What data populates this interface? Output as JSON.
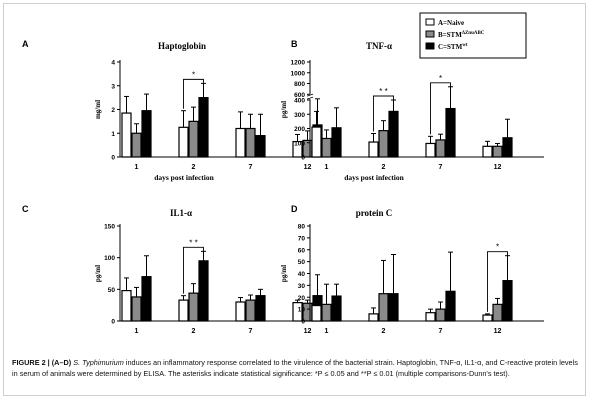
{
  "legend": {
    "items": [
      {
        "id": "A",
        "label": "A=Naive",
        "sup": "",
        "fill": "#ffffff"
      },
      {
        "id": "B",
        "label": "B=STM",
        "sup": "ΔZnuABC",
        "fill": "#8a8a8a"
      },
      {
        "id": "C",
        "label": "C=STM",
        "sup": "wt",
        "fill": "#000000"
      }
    ]
  },
  "xlabel_common": "days post infection",
  "caption": {
    "lead": "FIGURE 2 | (A–D)",
    "species": "S. Typhimurium",
    "body": " induces an inflammatory response correlated to the virulence of the bacterial strain. Haptoglobin, TNF-α, IL1-α, and C-reactive protein levels in serum of animals were determined by ELISA. The asterisks indicate statistical significance: *P ≤ 0.05 and **P ≤ 0.01 (multiple comparisons-Dunn's test)."
  },
  "chart_data": [
    {
      "type": "bar",
      "panel": "A",
      "title": "Haptoglobin",
      "ylabel": "mg/ml",
      "xlabel": "days post infection",
      "categories": [
        "1",
        "2",
        "7",
        "12"
      ],
      "ylim": [
        0,
        4
      ],
      "yticks": [
        0,
        1,
        2,
        3,
        4
      ],
      "yticklabels": [
        "0",
        "1",
        "2",
        "3",
        "4"
      ],
      "series": [
        {
          "name": "A=Naive",
          "values": [
            1.85,
            1.25,
            1.2,
            0.65
          ],
          "errors": [
            0.7,
            0.7,
            0.7,
            0.3
          ]
        },
        {
          "name": "B=STMΔZnuABC",
          "values": [
            1.0,
            1.5,
            1.2,
            0.7
          ],
          "errors": [
            0.4,
            0.6,
            0.6,
            0.4
          ]
        },
        {
          "name": "C=STMwt",
          "values": [
            1.95,
            2.5,
            0.9,
            1.35
          ],
          "errors": [
            0.7,
            0.6,
            0.9,
            1.1
          ]
        }
      ],
      "significance": [
        {
          "category": "2",
          "from": 0,
          "to": 2,
          "label": "*"
        }
      ]
    },
    {
      "type": "bar",
      "panel": "B",
      "title": "TNF-α",
      "ylabel": "pg/ml",
      "xlabel": "days post infection",
      "categories": [
        "1",
        "2",
        "7",
        "12"
      ],
      "ylim": [
        0,
        1200
      ],
      "yticks": [
        0,
        100,
        200,
        300,
        400,
        600,
        800,
        1000,
        1200
      ],
      "yticklabels": [
        "0",
        "100",
        "200",
        "300",
        "400",
        "600",
        "800",
        "1000",
        "1200"
      ],
      "axis_break": "between 400 and 600",
      "series": [
        {
          "name": "A=Naive",
          "values": [
            210,
            105,
            95,
            75
          ],
          "errors": [
            110,
            60,
            50,
            35
          ]
        },
        {
          "name": "B=STMΔZnuABC",
          "values": [
            130,
            185,
            120,
            75
          ],
          "errors": [
            60,
            70,
            40,
            20
          ]
        },
        {
          "name": "C=STMwt",
          "values": [
            205,
            320,
            340,
            135
          ],
          "errors": [
            140,
            80,
            400,
            130
          ]
        }
      ],
      "significance": [
        {
          "category": "2",
          "from": 0,
          "to": 2,
          "label": "* *"
        },
        {
          "category": "7",
          "from": 0,
          "to": 2,
          "label": "*"
        }
      ]
    },
    {
      "type": "bar",
      "panel": "C",
      "title": "IL1-α",
      "ylabel": "pg/ml",
      "xlabel": "days post infection",
      "categories": [
        "1",
        "2",
        "7",
        "12"
      ],
      "ylim": [
        0,
        150
      ],
      "yticks": [
        0,
        50,
        100,
        150
      ],
      "yticklabels": [
        "0",
        "50",
        "100",
        "150"
      ],
      "series": [
        {
          "name": "A=Naive",
          "values": [
            48,
            33,
            30,
            29
          ],
          "errors": [
            20,
            7,
            7,
            4
          ]
        },
        {
          "name": "B=STMΔZnuABC",
          "values": [
            38,
            44,
            33,
            28
          ],
          "errors": [
            15,
            15,
            8,
            5
          ]
        },
        {
          "name": "C=STMwt",
          "values": [
            70,
            95,
            40,
            40
          ],
          "errors": [
            33,
            15,
            10,
            33
          ]
        }
      ],
      "significance": [
        {
          "category": "2",
          "from": 0,
          "to": 2,
          "label": "* *"
        }
      ]
    },
    {
      "type": "bar",
      "panel": "D",
      "title": "protein C",
      "ylabel": "pg/ml",
      "xlabel": "days post infection",
      "categories": [
        "1",
        "2",
        "7",
        "12"
      ],
      "ylim": [
        0,
        80
      ],
      "yticks": [
        0,
        10,
        20,
        30,
        40,
        50,
        60,
        70,
        80
      ],
      "yticklabels": [
        "0",
        "10",
        "20",
        "30",
        "40",
        "50",
        "60",
        "70",
        "80"
      ],
      "series": [
        {
          "name": "A=Naive",
          "values": [
            13,
            6,
            7,
            5
          ],
          "errors": [
            8,
            5,
            3,
            1
          ]
        },
        {
          "name": "B=STMΔZnuABC",
          "values": [
            14,
            23,
            10,
            14
          ],
          "errors": [
            17,
            28,
            6,
            5
          ]
        },
        {
          "name": "C=STMwt",
          "values": [
            21,
            23,
            25,
            34
          ],
          "errors": [
            10,
            33,
            33,
            21
          ]
        }
      ],
      "significance": [
        {
          "category": "12",
          "from": 0,
          "to": 2,
          "label": "*"
        }
      ]
    }
  ]
}
